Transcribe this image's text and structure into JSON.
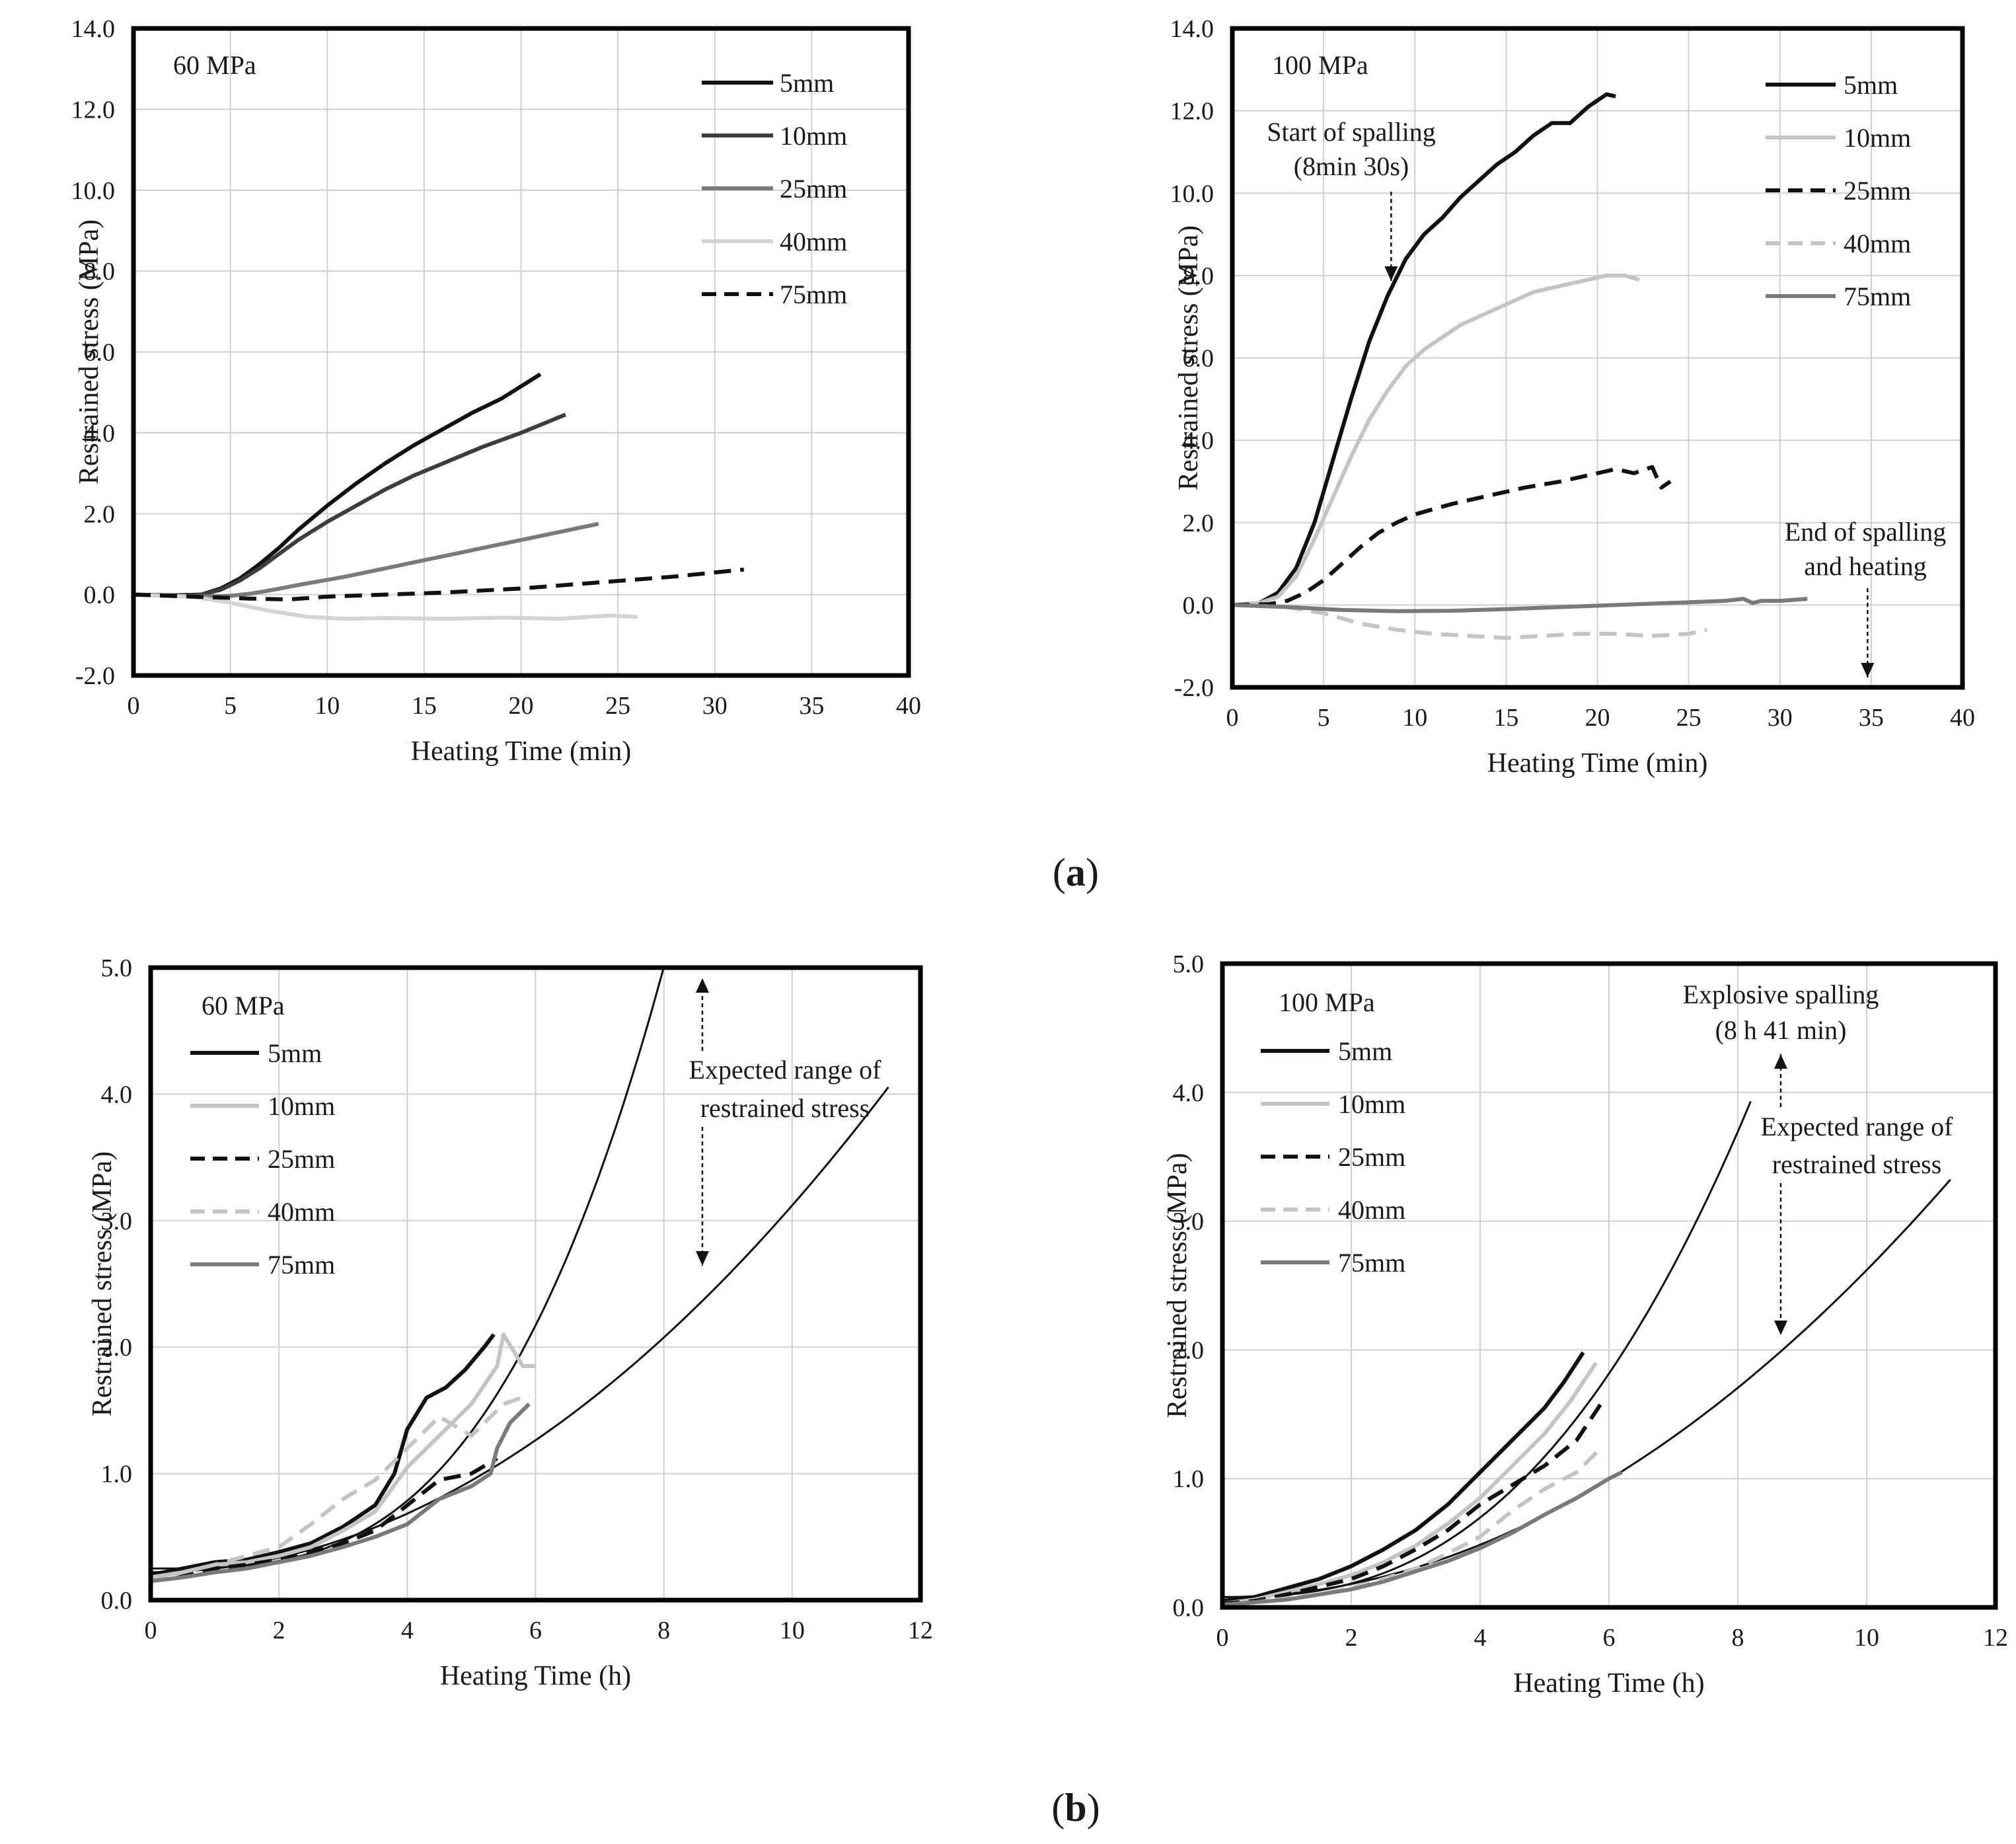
{
  "figure": {
    "captions": [
      {
        "id": "a",
        "text_pre": "(",
        "letter": "a",
        "text_post": ")"
      },
      {
        "id": "b",
        "text_pre": "(",
        "letter": "b",
        "text_post": ")"
      }
    ]
  },
  "chart_data": [
    {
      "id": "a-60",
      "type": "line",
      "title": "60 MPa",
      "xlabel": "Heating Time (min)",
      "ylabel": "Restrained stress (MPa)",
      "xlim": [
        0,
        40
      ],
      "ylim": [
        -2,
        14
      ],
      "xticks": [
        "0",
        "5",
        "10",
        "15",
        "20",
        "25",
        "30",
        "35",
        "40"
      ],
      "yticks": [
        "-2.0",
        "0.0",
        "2.0",
        "4.0",
        "6.0",
        "8.0",
        "10.0",
        "12.0",
        "14.0"
      ],
      "grid": true,
      "legend_position": "top-right",
      "series": [
        {
          "name": "5mm",
          "color": "#111111",
          "dash": "solid",
          "x": [
            0,
            2,
            3.5,
            4.5,
            5.5,
            6.5,
            7.5,
            8.5,
            10,
            11.5,
            13,
            14.5,
            16,
            17.5,
            19,
            21
          ],
          "y": [
            0,
            -0.02,
            0,
            0.15,
            0.4,
            0.75,
            1.15,
            1.6,
            2.2,
            2.75,
            3.25,
            3.7,
            4.1,
            4.5,
            4.85,
            5.45
          ]
        },
        {
          "name": "10mm",
          "color": "#3d3d3d",
          "dash": "solid",
          "x": [
            0,
            2,
            3.5,
            4.5,
            5.5,
            6.5,
            7.5,
            8.5,
            10,
            11.5,
            13,
            14.5,
            16,
            18,
            20,
            22.3
          ],
          "y": [
            0,
            -0.02,
            0,
            0.12,
            0.35,
            0.65,
            1.0,
            1.35,
            1.8,
            2.2,
            2.6,
            2.95,
            3.25,
            3.65,
            4.0,
            4.45
          ]
        },
        {
          "name": "25mm",
          "color": "#7a7a7a",
          "dash": "solid",
          "x": [
            0,
            3,
            5,
            6,
            7,
            9,
            11,
            13,
            15,
            17,
            19,
            21,
            24
          ],
          "y": [
            0,
            -0.05,
            -0.03,
            0.02,
            0.1,
            0.28,
            0.45,
            0.65,
            0.85,
            1.05,
            1.25,
            1.45,
            1.75
          ]
        },
        {
          "name": "40mm",
          "color": "#d4d4d4",
          "dash": "solid",
          "x": [
            0,
            3,
            5,
            7,
            9,
            11,
            13,
            16,
            19,
            22,
            24.5,
            26
          ],
          "y": [
            0,
            -0.05,
            -0.2,
            -0.4,
            -0.55,
            -0.6,
            -0.58,
            -0.6,
            -0.57,
            -0.6,
            -0.52,
            -0.55
          ]
        },
        {
          "name": "75mm",
          "color": "#111111",
          "dash": "dashed",
          "x": [
            0,
            3,
            6,
            8,
            10,
            13,
            16,
            20,
            24,
            28,
            31.5
          ],
          "y": [
            0,
            -0.05,
            -0.1,
            -0.12,
            -0.05,
            0,
            0.05,
            0.15,
            0.3,
            0.45,
            0.62
          ]
        }
      ],
      "annotations": []
    },
    {
      "id": "a-100",
      "type": "line",
      "title": "100 MPa",
      "xlabel": "Heating Time (min)",
      "ylabel": "Restrained stress (MPa)",
      "xlim": [
        0,
        40
      ],
      "ylim": [
        -2,
        14
      ],
      "xticks": [
        "0",
        "5",
        "10",
        "15",
        "20",
        "25",
        "30",
        "35",
        "40"
      ],
      "yticks": [
        "-2.0",
        "0.0",
        "2.0",
        "4.0",
        "6.0",
        "8.0",
        "10.0",
        "12.0",
        "14.0"
      ],
      "grid": true,
      "legend_position": "top-right",
      "series": [
        {
          "name": "5mm",
          "color": "#111111",
          "dash": "solid",
          "x": [
            0,
            1.5,
            2.5,
            3.5,
            4.5,
            5.5,
            6.5,
            7.5,
            8.5,
            9.5,
            10.5,
            11.5,
            12.5,
            13.5,
            14.5,
            15.5,
            16.5,
            17.5,
            18.5,
            19.5,
            20.5,
            21
          ],
          "y": [
            0,
            0.05,
            0.3,
            0.9,
            2.0,
            3.5,
            5.0,
            6.4,
            7.5,
            8.4,
            9.0,
            9.4,
            9.9,
            10.3,
            10.7,
            11.0,
            11.4,
            11.7,
            11.7,
            12.1,
            12.4,
            12.35
          ]
        },
        {
          "name": "10mm",
          "color": "#c4c4c4",
          "dash": "solid",
          "x": [
            0,
            1.5,
            2.5,
            3.5,
            4.5,
            5.5,
            6.5,
            7.5,
            8.5,
            9.5,
            10.5,
            11.5,
            12.5,
            13.5,
            14.5,
            15.5,
            16.5,
            17.5,
            18.5,
            19.5,
            20.5,
            21.5,
            22.3
          ],
          "y": [
            0,
            0.05,
            0.2,
            0.7,
            1.6,
            2.6,
            3.6,
            4.5,
            5.2,
            5.8,
            6.2,
            6.5,
            6.8,
            7.0,
            7.2,
            7.4,
            7.6,
            7.7,
            7.8,
            7.9,
            8.0,
            8.0,
            7.9
          ]
        },
        {
          "name": "25mm",
          "color": "#111111",
          "dash": "dashed",
          "x": [
            0,
            2,
            3,
            4,
            5,
            6,
            7,
            8,
            9,
            10,
            12,
            14,
            16,
            18,
            20,
            21,
            22,
            23,
            23.5,
            24
          ],
          "y": [
            0,
            0.02,
            0.1,
            0.3,
            0.6,
            1.0,
            1.4,
            1.75,
            2.0,
            2.2,
            2.45,
            2.65,
            2.85,
            3.0,
            3.2,
            3.3,
            3.2,
            3.35,
            2.85,
            3.0
          ]
        },
        {
          "name": "40mm",
          "color": "#c4c4c4",
          "dash": "dashed",
          "x": [
            0,
            3,
            5,
            7,
            9,
            11,
            13,
            15,
            17,
            19,
            21,
            23,
            25,
            26
          ],
          "y": [
            0,
            -0.05,
            -0.2,
            -0.45,
            -0.6,
            -0.7,
            -0.75,
            -0.8,
            -0.75,
            -0.7,
            -0.7,
            -0.75,
            -0.7,
            -0.6
          ]
        },
        {
          "name": "75mm",
          "color": "#7a7a7a",
          "dash": "solid",
          "x": [
            0,
            3,
            6,
            9,
            12,
            15,
            18,
            21,
            24,
            27,
            28,
            28.5,
            29,
            30,
            31.5
          ],
          "y": [
            0,
            -0.05,
            -0.12,
            -0.15,
            -0.14,
            -0.1,
            -0.05,
            0,
            0.05,
            0.1,
            0.15,
            0.05,
            0.1,
            0.1,
            0.15
          ]
        }
      ],
      "annotations": [
        {
          "lines": [
            "Start of spalling",
            "(8min 30s)"
          ],
          "arrow_x": 8.7,
          "arrow_from_y": 9.6,
          "arrow_to_y": 7.6
        },
        {
          "lines": [
            "End of spalling",
            "and heating"
          ],
          "arrow_x": 34.8,
          "arrow_from_y": -0.1,
          "arrow_to_y": -1.85
        }
      ]
    },
    {
      "id": "b-60",
      "type": "line",
      "title": "60 MPa",
      "xlabel": "Heating Time (h)",
      "ylabel": "Restrained stress (MPa)",
      "xlim": [
        0,
        12
      ],
      "ylim": [
        0,
        5
      ],
      "xticks": [
        "0",
        "2",
        "4",
        "6",
        "8",
        "10",
        "12"
      ],
      "yticks": [
        "0.0",
        "1.0",
        "2.0",
        "3.0",
        "4.0",
        "5.0"
      ],
      "grid": true,
      "legend_position": "top-left",
      "series": [
        {
          "name": "5mm",
          "color": "#111111",
          "dash": "solid",
          "x": [
            0,
            0.5,
            1,
            1.5,
            2,
            2.5,
            3,
            3.5,
            3.8,
            4,
            4.3,
            4.6,
            4.9,
            5.2,
            5.35
          ],
          "y": [
            0.2,
            0.25,
            0.3,
            0.32,
            0.38,
            0.45,
            0.58,
            0.75,
            1.0,
            1.35,
            1.6,
            1.68,
            1.82,
            2.0,
            2.1
          ]
        },
        {
          "name": "10mm",
          "color": "#c4c4c4",
          "dash": "solid",
          "x": [
            0,
            0.5,
            1,
            1.5,
            2,
            2.5,
            3,
            3.5,
            4,
            4.5,
            5,
            5.4,
            5.5,
            5.8,
            6
          ],
          "y": [
            0.18,
            0.22,
            0.28,
            0.3,
            0.35,
            0.42,
            0.55,
            0.7,
            1.05,
            1.3,
            1.55,
            1.85,
            2.1,
            1.85,
            1.85
          ]
        },
        {
          "name": "25mm",
          "color": "#111111",
          "dash": "dashed",
          "x": [
            0,
            0.5,
            1,
            1.5,
            2,
            2.5,
            3,
            3.5,
            4,
            4.5,
            5,
            5.4
          ],
          "y": [
            0.15,
            0.2,
            0.25,
            0.28,
            0.32,
            0.38,
            0.45,
            0.55,
            0.75,
            0.95,
            1.0,
            1.12
          ]
        },
        {
          "name": "40mm",
          "color": "#c4c4c4",
          "dash": "dashed",
          "x": [
            0,
            0.5,
            1,
            1.5,
            2,
            2.5,
            3,
            3.5,
            4,
            4.5,
            5,
            5.5,
            5.9
          ],
          "y": [
            0.15,
            0.22,
            0.28,
            0.35,
            0.42,
            0.6,
            0.8,
            0.95,
            1.2,
            1.45,
            1.3,
            1.55,
            1.62
          ]
        },
        {
          "name": "75mm",
          "color": "#7a7a7a",
          "dash": "solid",
          "x": [
            0,
            0.5,
            1,
            1.5,
            2,
            2.5,
            3,
            3.5,
            4,
            4.5,
            5,
            5.3,
            5.4,
            5.6,
            5.9
          ],
          "y": [
            0.15,
            0.18,
            0.22,
            0.25,
            0.3,
            0.35,
            0.42,
            0.5,
            0.6,
            0.8,
            0.9,
            1.0,
            1.2,
            1.4,
            1.55
          ]
        }
      ],
      "bounds": [
        {
          "name": "upper",
          "a": 0.25,
          "b": 0.0,
          "c": 0.0068,
          "exp": 3.15,
          "xmax": 9.0
        },
        {
          "name": "lower",
          "a": 0.22,
          "b": 0.0,
          "c": 0.029,
          "exp": 2.0,
          "xmax": 11.5
        }
      ],
      "annotations": [
        {
          "lines": [
            "Expected range of",
            "restrained stress"
          ],
          "arrow_x": 8.6,
          "arrow_top_y": 4.95,
          "arrow_bottom_y": 2.63
        }
      ]
    },
    {
      "id": "b-100",
      "type": "line",
      "title": "100 MPa",
      "xlabel": "Heating Time (h)",
      "ylabel": "Restrained stress (MPa)",
      "xlim": [
        0,
        12
      ],
      "ylim": [
        0,
        5
      ],
      "xticks": [
        "0",
        "2",
        "4",
        "6",
        "8",
        "10",
        "12"
      ],
      "yticks": [
        "0.0",
        "1.0",
        "2.0",
        "3.0",
        "4.0",
        "5.0"
      ],
      "grid": true,
      "legend_position": "top-left",
      "series": [
        {
          "name": "5mm",
          "color": "#111111",
          "dash": "solid",
          "x": [
            0,
            0.5,
            1,
            1.5,
            2,
            2.5,
            3,
            3.5,
            4,
            4.5,
            5,
            5.3,
            5.6
          ],
          "y": [
            0.05,
            0.08,
            0.15,
            0.22,
            0.32,
            0.45,
            0.6,
            0.8,
            1.05,
            1.3,
            1.55,
            1.75,
            1.98
          ]
        },
        {
          "name": "10mm",
          "color": "#c4c4c4",
          "dash": "solid",
          "x": [
            0,
            0.5,
            1,
            1.5,
            2,
            2.5,
            3,
            3.5,
            4,
            4.5,
            5,
            5.4,
            5.8
          ],
          "y": [
            0.03,
            0.06,
            0.12,
            0.18,
            0.25,
            0.35,
            0.48,
            0.65,
            0.85,
            1.1,
            1.35,
            1.6,
            1.9
          ]
        },
        {
          "name": "25mm",
          "color": "#111111",
          "dash": "dashed",
          "x": [
            0,
            0.5,
            1,
            1.5,
            2,
            2.5,
            3,
            3.5,
            4,
            4.5,
            5,
            5.5,
            5.9
          ],
          "y": [
            0.03,
            0.05,
            0.1,
            0.16,
            0.22,
            0.32,
            0.45,
            0.6,
            0.8,
            0.95,
            1.1,
            1.3,
            1.6
          ]
        },
        {
          "name": "40mm",
          "color": "#c4c4c4",
          "dash": "dashed",
          "x": [
            0,
            0.5,
            1,
            1.5,
            2,
            2.5,
            3,
            3.5,
            4,
            4.5,
            5,
            5.5,
            5.9
          ],
          "y": [
            0.02,
            0.04,
            0.07,
            0.1,
            0.15,
            0.22,
            0.3,
            0.42,
            0.55,
            0.75,
            0.92,
            1.05,
            1.25
          ]
        },
        {
          "name": "75mm",
          "color": "#7a7a7a",
          "dash": "solid",
          "x": [
            0,
            0.5,
            1,
            1.5,
            2,
            2.5,
            3,
            3.5,
            4,
            4.5,
            5,
            5.5,
            6,
            6.2
          ],
          "y": [
            0.02,
            0.04,
            0.06,
            0.1,
            0.14,
            0.2,
            0.28,
            0.36,
            0.46,
            0.58,
            0.72,
            0.85,
            1.0,
            1.05
          ]
        }
      ],
      "bounds": [
        {
          "name": "upper",
          "a": 0.08,
          "b": 0.0,
          "c": 0.018,
          "exp": 2.55,
          "xmax": 8.2
        },
        {
          "name": "lower",
          "a": 0.08,
          "b": 0.0,
          "c": 0.0254,
          "exp": 2.0,
          "xmax": 11.3
        }
      ],
      "annotations": [
        {
          "lines": [
            "Explosive spalling",
            "(8 h 41 min)"
          ],
          "arrow_x": 8.7,
          "arrow_from_y": 3.9,
          "arrow_to_y": 4.3
        },
        {
          "lines": [
            "Expected range of",
            "restrained stress"
          ],
          "arrow_x": 8.7,
          "arrow_from_y": 3.3,
          "arrow_to_y": 2.1
        }
      ]
    }
  ]
}
